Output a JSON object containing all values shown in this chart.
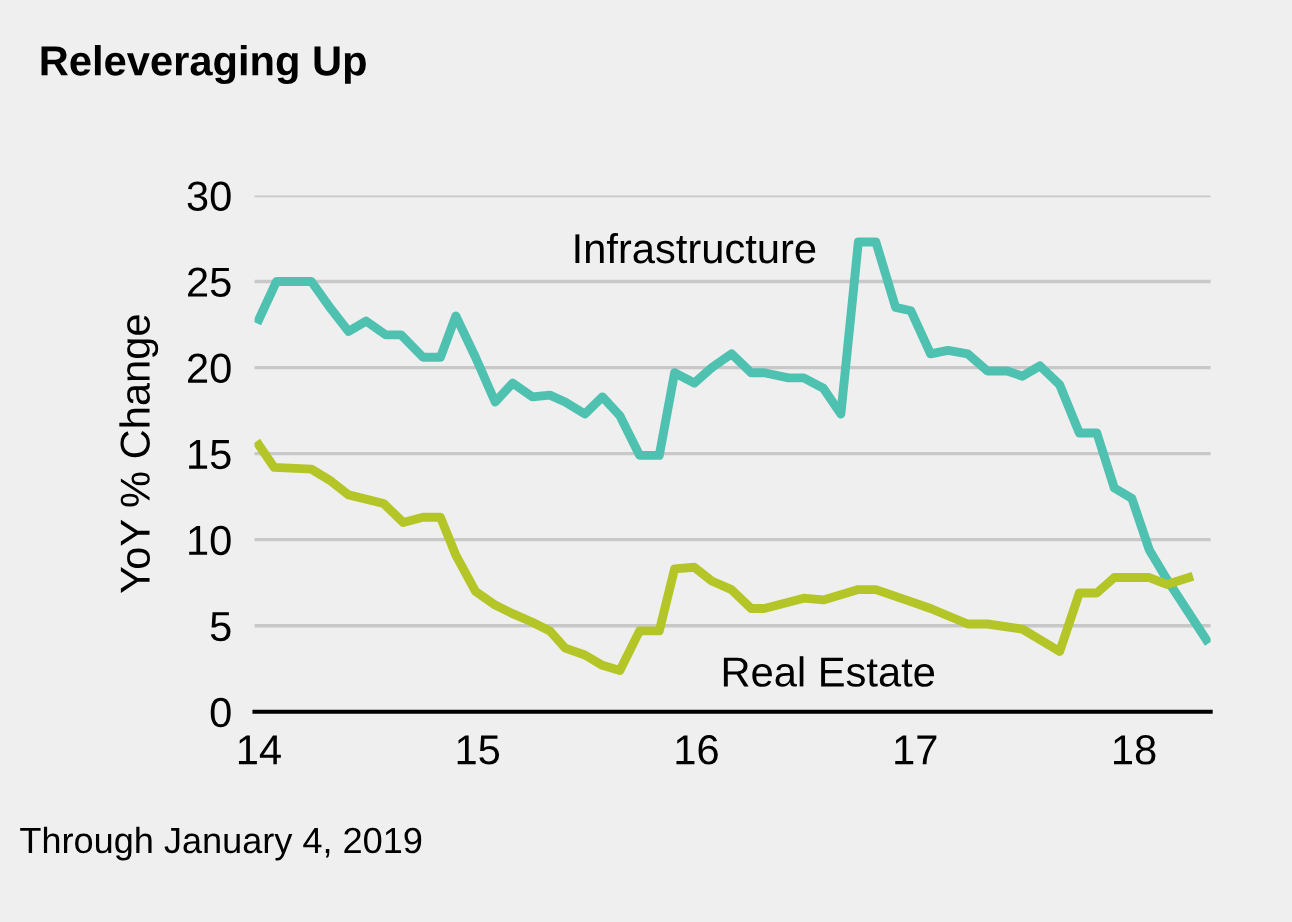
{
  "chart_data": {
    "type": "line",
    "title": "Releveraging Up",
    "ylabel": "YoY % Change",
    "xlim": [
      13.98,
      18.35
    ],
    "xticks": [
      14,
      15,
      16,
      17,
      18
    ],
    "ylim": [
      0,
      30
    ],
    "yticks": [
      0,
      5,
      10,
      15,
      20,
      25,
      30
    ],
    "grid": "y",
    "legend": false,
    "marker": "none",
    "line_style": "solid",
    "series": [
      {
        "name": "Infrastructure",
        "color": "#4fc1b0",
        "x": [
          14.0,
          14.08,
          14.24,
          14.33,
          14.41,
          14.49,
          14.58,
          14.65,
          14.75,
          14.83,
          14.9,
          14.99,
          15.08,
          15.16,
          15.25,
          15.33,
          15.4,
          15.49,
          15.57,
          15.65,
          15.74,
          15.83,
          15.9,
          15.99,
          16.07,
          16.16,
          16.25,
          16.31,
          16.42,
          16.49,
          16.58,
          16.66,
          16.74,
          16.82,
          16.91,
          16.98,
          17.07,
          17.15,
          17.24,
          17.33,
          17.42,
          17.49,
          17.57,
          17.66,
          17.75,
          17.83,
          17.91,
          17.99,
          18.07,
          18.15,
          18.33
        ],
        "values": [
          22.8,
          25.0,
          25.0,
          23.4,
          22.1,
          22.7,
          21.9,
          21.9,
          20.6,
          20.6,
          23.0,
          20.6,
          18.0,
          19.1,
          18.3,
          18.4,
          18.0,
          17.3,
          18.3,
          17.2,
          14.9,
          14.9,
          19.7,
          19.1,
          20.0,
          20.8,
          19.7,
          19.7,
          19.4,
          19.4,
          18.8,
          17.3,
          27.3,
          27.3,
          23.5,
          23.3,
          20.8,
          21.0,
          20.8,
          19.8,
          19.8,
          19.5,
          20.1,
          19.0,
          16.2,
          16.2,
          13.0,
          12.4,
          9.4,
          7.7,
          4.2
        ]
      },
      {
        "name": "Real Estate",
        "color": "#b4c627",
        "x": [
          14.0,
          14.07,
          14.24,
          14.33,
          14.41,
          14.57,
          14.66,
          14.75,
          14.83,
          14.9,
          14.99,
          15.08,
          15.16,
          15.25,
          15.33,
          15.4,
          15.49,
          15.57,
          15.65,
          15.74,
          15.83,
          15.9,
          15.99,
          16.07,
          16.16,
          16.25,
          16.31,
          16.49,
          16.58,
          16.74,
          16.82,
          16.98,
          17.07,
          17.24,
          17.33,
          17.49,
          17.66,
          17.75,
          17.83,
          17.91,
          18.07,
          18.15,
          18.25
        ],
        "values": [
          15.5,
          14.2,
          14.1,
          13.4,
          12.6,
          12.1,
          11.0,
          11.3,
          11.3,
          9.1,
          7.0,
          6.2,
          5.7,
          5.2,
          4.7,
          3.7,
          3.3,
          2.7,
          2.4,
          4.7,
          4.7,
          8.3,
          8.4,
          7.6,
          7.1,
          6.0,
          6.0,
          6.6,
          6.5,
          7.1,
          7.1,
          6.4,
          6.0,
          5.1,
          5.1,
          4.8,
          3.5,
          6.9,
          6.9,
          7.8,
          7.8,
          7.4,
          7.8
        ]
      }
    ],
    "annotations": [
      "Through January 4, 2019"
    ]
  }
}
